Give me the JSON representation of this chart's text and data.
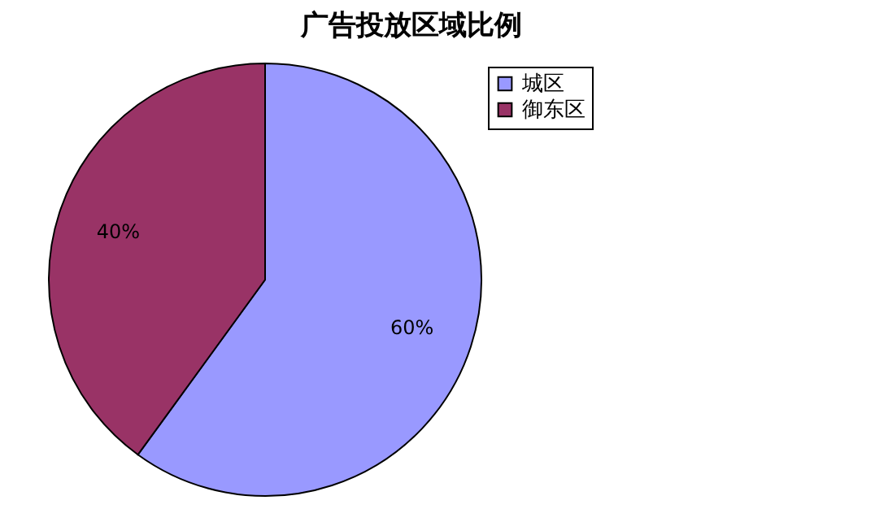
{
  "chart_data": {
    "type": "pie",
    "title": "广告投放区域比例",
    "categories": [
      "城区",
      "御东区"
    ],
    "values": [
      60,
      40
    ],
    "colors": [
      "#9999ff",
      "#993366"
    ],
    "value_labels": [
      "60%",
      "40%"
    ],
    "legend": "top right"
  }
}
